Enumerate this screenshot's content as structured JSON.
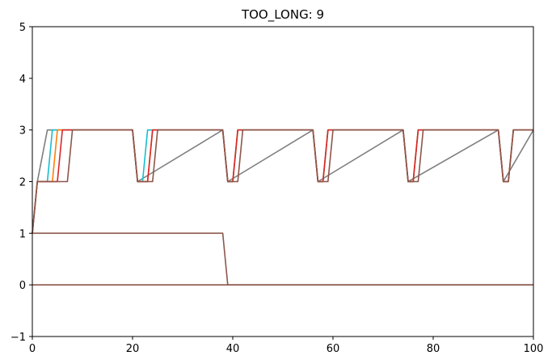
{
  "chart_data": {
    "type": "line",
    "title": "TOO_LONG: 9",
    "xlabel": "",
    "ylabel": "",
    "xlim": [
      0,
      100
    ],
    "ylim": [
      -1,
      5
    ],
    "xticks": [
      0,
      20,
      40,
      60,
      80,
      100
    ],
    "yticks": [
      -1,
      0,
      1,
      2,
      3,
      4,
      5
    ],
    "grid": false,
    "series": [
      {
        "color": "#7f7f7f",
        "x": [
          0,
          1,
          3,
          20,
          21,
          38,
          39,
          56,
          57,
          74,
          75,
          93,
          94,
          100
        ],
        "y": [
          1,
          2,
          3,
          3,
          2,
          3,
          2,
          3,
          2,
          3,
          2,
          3,
          2,
          3
        ]
      },
      {
        "color": "#17becf",
        "x": [
          0,
          1,
          2,
          3,
          4,
          20,
          21,
          22,
          23,
          38,
          39,
          40,
          41,
          56,
          57,
          58,
          59,
          74,
          75,
          76,
          77,
          93,
          94,
          95,
          96,
          100
        ],
        "y": [
          1,
          2,
          2,
          2,
          3,
          3,
          2,
          2,
          3,
          3,
          2,
          2,
          3,
          3,
          2,
          2,
          3,
          3,
          2,
          2,
          3,
          3,
          2,
          2,
          3,
          3
        ]
      },
      {
        "color": "#ff7f0e",
        "x": [
          0,
          1,
          4,
          5,
          20,
          21,
          23,
          24,
          38,
          39,
          40,
          41,
          56,
          57,
          58,
          59,
          74,
          75,
          76,
          77,
          93,
          94,
          95,
          96,
          100
        ],
        "y": [
          1,
          2,
          2,
          3,
          3,
          2,
          2,
          3,
          3,
          2,
          2,
          3,
          3,
          2,
          2,
          3,
          3,
          2,
          2,
          3,
          3,
          2,
          2,
          3,
          3
        ]
      },
      {
        "color": "#d62728",
        "x": [
          0,
          1,
          5,
          6,
          20,
          21,
          23,
          24,
          38,
          39,
          40,
          41,
          56,
          57,
          58,
          59,
          74,
          75,
          76,
          77,
          93,
          94,
          95,
          96,
          100
        ],
        "y": [
          1,
          2,
          2,
          3,
          3,
          2,
          2,
          3,
          3,
          2,
          2,
          3,
          3,
          2,
          2,
          3,
          3,
          2,
          2,
          3,
          3,
          2,
          2,
          3,
          3
        ]
      },
      {
        "color": "#8c564b",
        "x": [
          0,
          1,
          7,
          8,
          20,
          21,
          24,
          25,
          38,
          39,
          41,
          42,
          56,
          57,
          59,
          60,
          74,
          75,
          77,
          78,
          93,
          94,
          95,
          96,
          100
        ],
        "y": [
          1,
          2,
          2,
          3,
          3,
          2,
          2,
          3,
          3,
          2,
          2,
          3,
          3,
          2,
          2,
          3,
          3,
          2,
          2,
          3,
          3,
          2,
          2,
          3,
          3
        ]
      },
      {
        "color": "#8c564b",
        "x": [
          0,
          38,
          39,
          100
        ],
        "y": [
          1,
          1,
          0,
          0
        ]
      },
      {
        "color": "#8c564b",
        "x": [
          0,
          100
        ],
        "y": [
          0,
          0
        ]
      }
    ]
  }
}
